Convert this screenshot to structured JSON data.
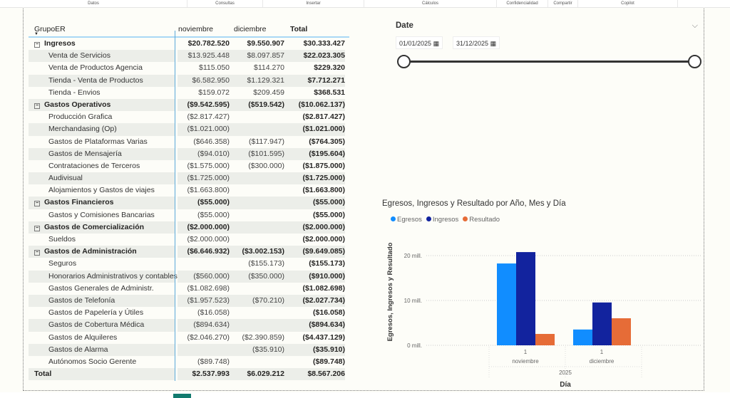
{
  "ribbon": [
    "Datos",
    "Consultas",
    "Insertar",
    "Cálculos",
    "Confidencialidad",
    "Compartir",
    "Copilot"
  ],
  "matrix": {
    "headers": [
      "GrupoER",
      "noviembre",
      "diciembre",
      "Total"
    ],
    "rows": [
      [
        "g",
        "Ingresos",
        "$20.782.520",
        "$9.550.907",
        "$30.333.427"
      ],
      [
        "s",
        "Venta de Servicios",
        "$13.925.448",
        "$8.097.857",
        "$22.023.305"
      ],
      [
        "s",
        "Venta de Productos Agencia",
        "$115.050",
        "$114.270",
        "$229.320"
      ],
      [
        "s",
        "Tienda - Venta de Productos",
        "$6.582.950",
        "$1.129.321",
        "$7.712.271"
      ],
      [
        "s",
        "Tienda - Envios",
        "$159.072",
        "$209.459",
        "$368.531"
      ],
      [
        "g",
        "Gastos Operativos",
        "($9.542.595)",
        "($519.542)",
        "($10.062.137)"
      ],
      [
        "s",
        "Producción Grafica",
        "($2.817.427)",
        "",
        "($2.817.427)"
      ],
      [
        "s",
        "Merchandasing (Op)",
        "($1.021.000)",
        "",
        "($1.021.000)"
      ],
      [
        "s",
        "Gastos de Plataformas Varias",
        "($646.358)",
        "($117.947)",
        "($764.305)"
      ],
      [
        "s",
        "Gastos de Mensajería",
        "($94.010)",
        "($101.595)",
        "($195.604)"
      ],
      [
        "s",
        "Contrataciones de Terceros",
        "($1.575.000)",
        "($300.000)",
        "($1.875.000)"
      ],
      [
        "s",
        "Audivisual",
        "($1.725.000)",
        "",
        "($1.725.000)"
      ],
      [
        "s",
        "Alojamientos y Gastos de viajes",
        "($1.663.800)",
        "",
        "($1.663.800)"
      ],
      [
        "g",
        "Gastos Financieros",
        "($55.000)",
        "",
        "($55.000)"
      ],
      [
        "s",
        "Gastos y Comisiones Bancarias",
        "($55.000)",
        "",
        "($55.000)"
      ],
      [
        "g",
        "Gastos de Comercialización",
        "($2.000.000)",
        "",
        "($2.000.000)"
      ],
      [
        "s",
        "Sueldos",
        "($2.000.000)",
        "",
        "($2.000.000)"
      ],
      [
        "g",
        "Gastos de Administración",
        "($6.646.932)",
        "($3.002.153)",
        "($9.649.085)"
      ],
      [
        "s",
        "Seguros",
        "",
        "($155.173)",
        "($155.173)"
      ],
      [
        "s",
        "Honorarios Administrativos y contables",
        "($560.000)",
        "($350.000)",
        "($910.000)"
      ],
      [
        "s",
        "Gastos Generales de Administr.",
        "($1.082.698)",
        "",
        "($1.082.698)"
      ],
      [
        "s",
        "Gastos de Telefonía",
        "($1.957.523)",
        "($70.210)",
        "($2.027.734)"
      ],
      [
        "s",
        "Gastos de Papelería y Útiles",
        "($16.058)",
        "",
        "($16.058)"
      ],
      [
        "s",
        "Gastos de Cobertura Médica",
        "($894.634)",
        "",
        "($894.634)"
      ],
      [
        "s",
        "Gastos de Alquileres",
        "($2.046.270)",
        "($2.390.859)",
        "($4.437.129)"
      ],
      [
        "s",
        "Gastos de Alarma",
        "",
        "($35.910)",
        "($35.910)"
      ],
      [
        "s",
        "Autónomos Socio Gerente",
        "($89.748)",
        "",
        "($89.748)"
      ],
      [
        "t",
        "Total",
        "$2.537.993",
        "$6.029.212",
        "$8.567.206"
      ]
    ]
  },
  "slicer": {
    "title": "Date",
    "start": "01/01/2025",
    "end": "31/12/2025"
  },
  "chart_data": {
    "type": "bar",
    "title": "Egresos, Ingresos y Resultado por Año, Mes y Día",
    "categories": [
      "noviembre",
      "diciembre"
    ],
    "day_labels": [
      "1",
      "1"
    ],
    "year_label": "2025",
    "xlabel": "Día",
    "ylabel": "Egresos, Ingresos y Resultado",
    "ylim": [
      0,
      23000000
    ],
    "yticks": [
      {
        "v": 0,
        "label": "0 mill."
      },
      {
        "v": 10000000,
        "label": "10 mill."
      },
      {
        "v": 20000000,
        "label": "20 mill."
      }
    ],
    "series": [
      {
        "name": "Egresos",
        "color": "#118DFF",
        "values": [
          18244527,
          3521695
        ]
      },
      {
        "name": "Ingresos",
        "color": "#12239E",
        "values": [
          20782520,
          9550907
        ]
      },
      {
        "name": "Resultado",
        "color": "#E66C37",
        "values": [
          2537993,
          6029212
        ]
      }
    ],
    "legend": "top-left"
  }
}
